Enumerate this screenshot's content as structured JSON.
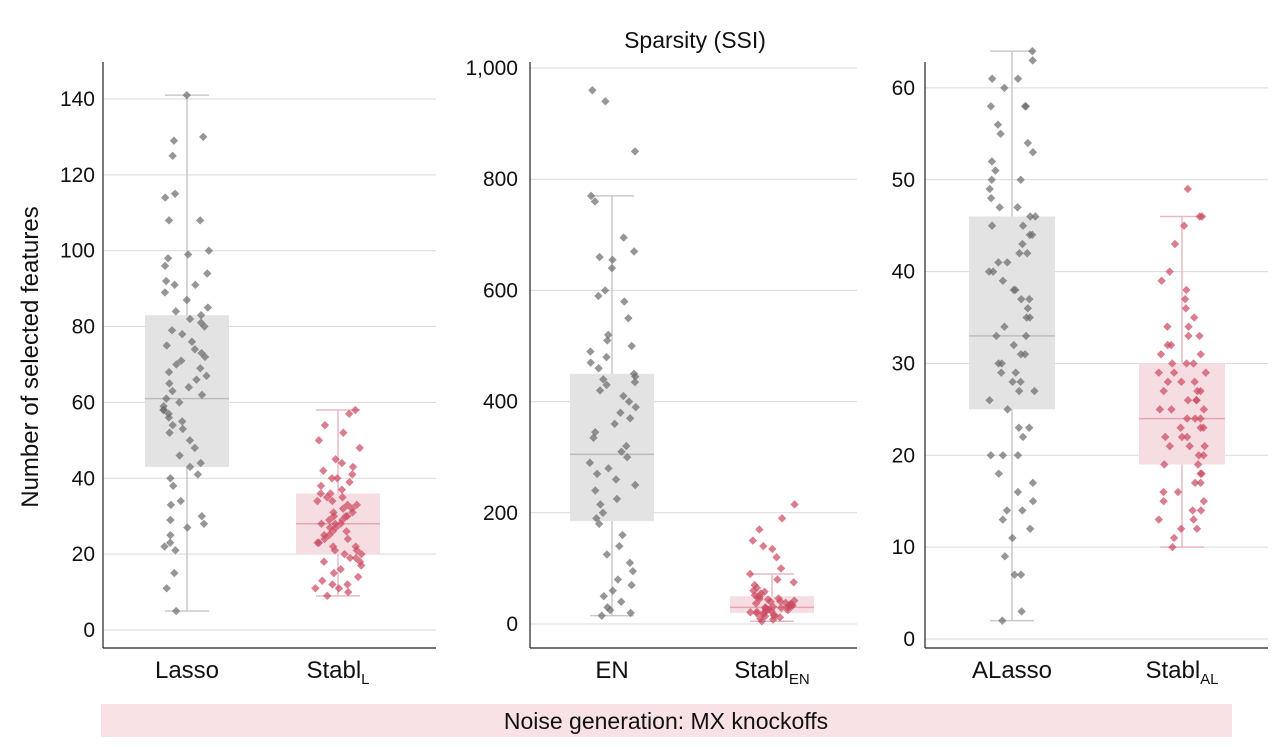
{
  "figure_title": "Sparsity (SSI)",
  "ylabel": "Number of selected features",
  "footer": "Noise generation: MX knockoffs",
  "colors": {
    "grey_box": "#e3e3e3",
    "grey_points": "#6e6e6e",
    "red_box": "#f6dde2",
    "red_points": "#cc4b62",
    "footer_band": "#f8e2e6",
    "grid": "#d9d9d9"
  },
  "chart_data": [
    {
      "type": "box+strip",
      "title": "",
      "ylim": [
        0,
        145
      ],
      "yticks": [
        0,
        20,
        40,
        60,
        80,
        100,
        120,
        140
      ],
      "ytick_labels": [
        "0",
        "20",
        "40",
        "60",
        "80",
        "100",
        "120",
        "140"
      ],
      "groups": [
        {
          "label": "Lasso",
          "sub": "",
          "color": "grey",
          "whisker_low": 5,
          "q1": 43,
          "median": 61,
          "q3": 83,
          "whisker_high": 141,
          "points": [
            5,
            11,
            15,
            21,
            22,
            23,
            25,
            27,
            28,
            29,
            30,
            33,
            34,
            38,
            40,
            41,
            43,
            44,
            46,
            48,
            50,
            52,
            53,
            54,
            55,
            56,
            57,
            58,
            58,
            59,
            60,
            61,
            62,
            63,
            64,
            65,
            66,
            67,
            68,
            69,
            70,
            71,
            72,
            73,
            74,
            75,
            76,
            78,
            79,
            80,
            81,
            82,
            83,
            84,
            85,
            87,
            89,
            91,
            91,
            92,
            94,
            96,
            98,
            99,
            100,
            108,
            108,
            114,
            115,
            125,
            129,
            130,
            141
          ]
        },
        {
          "label": "Stabl",
          "sub": "L",
          "color": "red",
          "whisker_low": 9,
          "q1": 20,
          "median": 28,
          "q3": 36,
          "whisker_high": 58,
          "points": [
            9,
            10,
            11,
            11,
            12,
            12,
            13,
            14,
            15,
            16,
            17,
            18,
            18,
            19,
            19,
            20,
            20,
            21,
            21,
            22,
            22,
            23,
            23,
            24,
            24,
            25,
            25,
            26,
            26,
            27,
            27,
            28,
            28,
            28,
            29,
            29,
            30,
            30,
            30,
            31,
            31,
            32,
            32,
            33,
            33,
            34,
            34,
            35,
            35,
            36,
            36,
            37,
            38,
            39,
            40,
            40,
            41,
            42,
            43,
            44,
            45,
            48,
            50,
            52,
            54,
            57,
            58
          ]
        }
      ]
    },
    {
      "type": "box+strip",
      "title": "Sparsity (SSI)",
      "ylim": [
        0,
        1000
      ],
      "yticks": [
        0,
        200,
        400,
        600,
        800,
        1000
      ],
      "ytick_labels": [
        "0",
        "200",
        "400",
        "600",
        "800",
        "1,000"
      ],
      "groups": [
        {
          "label": "EN",
          "sub": "",
          "color": "grey",
          "whisker_low": 15,
          "q1": 185,
          "median": 305,
          "q3": 450,
          "whisker_high": 770,
          "points": [
            15,
            20,
            25,
            30,
            40,
            50,
            60,
            70,
            80,
            95,
            110,
            125,
            140,
            160,
            180,
            190,
            200,
            215,
            225,
            240,
            250,
            260,
            270,
            280,
            290,
            300,
            310,
            320,
            335,
            345,
            360,
            370,
            380,
            390,
            400,
            410,
            420,
            430,
            435,
            440,
            445,
            450,
            460,
            470,
            480,
            490,
            500,
            510,
            520,
            550,
            580,
            590,
            600,
            640,
            655,
            660,
            670,
            695,
            760,
            770,
            850,
            940,
            960
          ]
        },
        {
          "label": "Stabl",
          "sub": "EN",
          "color": "red",
          "whisker_low": 5,
          "q1": 20,
          "median": 30,
          "q3": 50,
          "whisker_high": 90,
          "points": [
            5,
            8,
            10,
            12,
            14,
            15,
            16,
            18,
            19,
            20,
            21,
            22,
            23,
            24,
            25,
            26,
            27,
            28,
            29,
            30,
            30,
            31,
            32,
            33,
            34,
            35,
            36,
            37,
            38,
            40,
            41,
            42,
            44,
            45,
            46,
            48,
            50,
            52,
            55,
            58,
            60,
            65,
            70,
            75,
            80,
            90,
            100,
            120,
            135,
            140,
            150,
            170,
            190,
            215
          ]
        }
      ]
    },
    {
      "type": "box+strip",
      "title": "",
      "ylim": [
        0,
        65
      ],
      "yticks": [
        0,
        10,
        20,
        30,
        40,
        50,
        60
      ],
      "ytick_labels": [
        "0",
        "10",
        "20",
        "30",
        "40",
        "50",
        "60"
      ],
      "groups": [
        {
          "label": "ALasso",
          "sub": "",
          "color": "grey",
          "whisker_low": 2,
          "q1": 25,
          "median": 33,
          "q3": 46,
          "whisker_high": 64,
          "points": [
            2,
            3,
            7,
            7,
            9,
            11,
            12,
            13,
            14,
            14,
            15,
            16,
            17,
            18,
            20,
            20,
            20,
            22,
            23,
            23,
            25,
            26,
            27,
            27,
            28,
            28,
            29,
            29,
            30,
            30,
            31,
            31,
            32,
            33,
            33,
            34,
            35,
            35,
            36,
            37,
            37,
            38,
            38,
            39,
            40,
            40,
            41,
            41,
            42,
            42,
            43,
            44,
            44,
            45,
            45,
            46,
            46,
            47,
            47,
            48,
            49,
            50,
            50,
            51,
            52,
            53,
            54,
            55,
            56,
            58,
            58,
            58,
            60,
            61,
            61,
            63,
            64
          ]
        },
        {
          "label": "Stabl",
          "sub": "AL",
          "color": "red",
          "whisker_low": 10,
          "q1": 19,
          "median": 24,
          "q3": 30,
          "whisker_high": 46,
          "points": [
            10,
            11,
            12,
            12,
            13,
            13,
            14,
            14,
            15,
            15,
            16,
            16,
            17,
            17,
            18,
            18,
            19,
            19,
            20,
            20,
            21,
            21,
            21,
            22,
            22,
            22,
            23,
            23,
            23,
            24,
            24,
            24,
            25,
            25,
            25,
            26,
            26,
            26,
            27,
            27,
            27,
            28,
            28,
            28,
            29,
            29,
            29,
            30,
            30,
            30,
            31,
            31,
            32,
            32,
            33,
            33,
            34,
            34,
            35,
            36,
            37,
            38,
            39,
            40,
            43,
            45,
            46,
            46,
            49
          ]
        }
      ]
    }
  ]
}
